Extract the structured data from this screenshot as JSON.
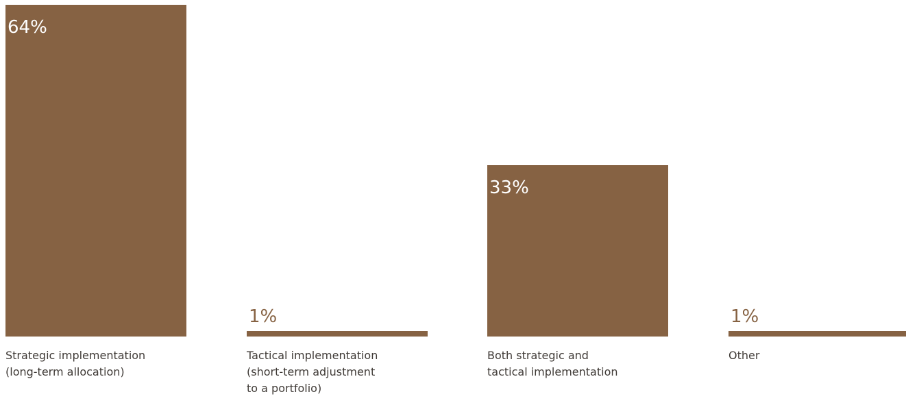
{
  "chart_data": {
    "type": "bar",
    "categories": [
      "Strategic implementation\n(long-term allocation)",
      "Tactical implementation\n(short-term adjustment\nto a portfolio)",
      "Both strategic and\ntactical implementation",
      "Other"
    ],
    "values": [
      64,
      1,
      33,
      1
    ],
    "value_labels": [
      "64%",
      "1%",
      "33%",
      "1%"
    ],
    "ylim": [
      0,
      64
    ],
    "grid": false,
    "legend": "none",
    "colors": {
      "bar": "#866243",
      "label_inside": "#ffffff",
      "label_outside": "#866243",
      "category_text": "#3f3a36"
    }
  }
}
